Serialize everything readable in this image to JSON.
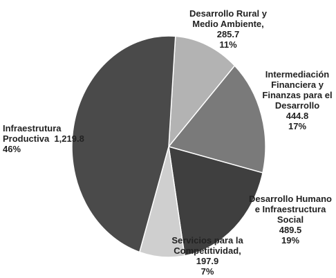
{
  "chart_data": {
    "type": "pie",
    "categories": [
      "Desarrollo Rural y Medio Ambiente,",
      "Intermediación Financiera y Finanzas para el Desarrollo",
      "Desarrollo Humano e Infraestructura Social",
      "Servicios para la Competitividad,",
      "Infraestrutura Productiva"
    ],
    "values": [
      285.7,
      444.8,
      489.5,
      197.9,
      1219.8
    ],
    "value_labels": [
      "285.7",
      "444.8",
      "489.5",
      "197.9",
      "1,219.8"
    ],
    "percent_labels": [
      "11%",
      "17%",
      "19%",
      "7%",
      "46%"
    ],
    "colors": [
      "#b3b3b3",
      "#7a7a7a",
      "#3f3f3f",
      "#cfcfcf",
      "#4a4a4a"
    ]
  }
}
